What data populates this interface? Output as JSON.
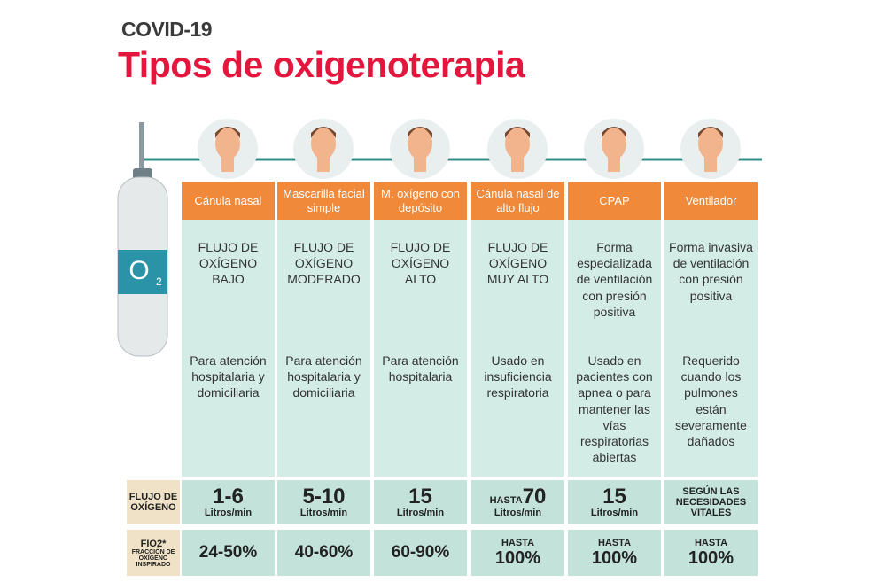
{
  "header": {
    "supertitle": "COVID-19",
    "title": "Tipos de oxigenoterapia"
  },
  "tank": {
    "symbol": "O",
    "subscript": "2"
  },
  "row_labels": {
    "flow": "FLUJO DE OXÍGENO",
    "fio2": "FIO2*",
    "fio2_note": "FRACCIÓN DE OXÍGENO INSPIRADO"
  },
  "columns": [
    {
      "name": "Cánula nasal",
      "description": "FLUJO DE OXÍGENO BAJO",
      "usage": "Para atención hospitalaria y domiciliaria",
      "flow": {
        "value": "1-6",
        "unit": "Litros/min"
      },
      "fio2": {
        "value": "24-50%"
      }
    },
    {
      "name": "Mascarilla facial simple",
      "description": "FLUJO DE OXÍGENO MODERADO",
      "usage": "Para atención hospitalaria y domiciliaria",
      "flow": {
        "value": "5-10",
        "unit": "Litros/min"
      },
      "fio2": {
        "value": "40-60%"
      }
    },
    {
      "name": "M. oxígeno con depósito",
      "description": "FLUJO DE OXÍGENO ALTO",
      "usage": "Para atención hospitalaria",
      "flow": {
        "value": "15",
        "unit": "Litros/min"
      },
      "fio2": {
        "value": "60-90%"
      }
    },
    {
      "name": "Cánula nasal de alto flujo",
      "description": "FLUJO DE OXÍGENO MUY ALTO",
      "usage": "Usado en insuficiencia respiratoria",
      "flow": {
        "prefix": "HASTA",
        "value": "70",
        "unit": "Litros/min"
      },
      "fio2": {
        "prefix": "HASTA",
        "value": "100%"
      }
    },
    {
      "name": "CPAP",
      "description": "Forma especializada de ventilación con presión positiva",
      "usage": "Usado en pacientes con apnea o para mantener las vías respiratorias abiertas",
      "flow": {
        "value": "15",
        "unit": "Litros/min"
      },
      "fio2": {
        "prefix": "HASTA",
        "value": "100%"
      }
    },
    {
      "name": "Ventilador",
      "description": "Forma invasiva de ventilación con presión positiva",
      "usage": "Requerido cuando los pulmones están severamente dañados",
      "flow": {
        "note": "SEGÚN LAS NECESIDADES VITALES"
      },
      "fio2": {
        "prefix": "HASTA",
        "value": "100%"
      }
    }
  ]
}
